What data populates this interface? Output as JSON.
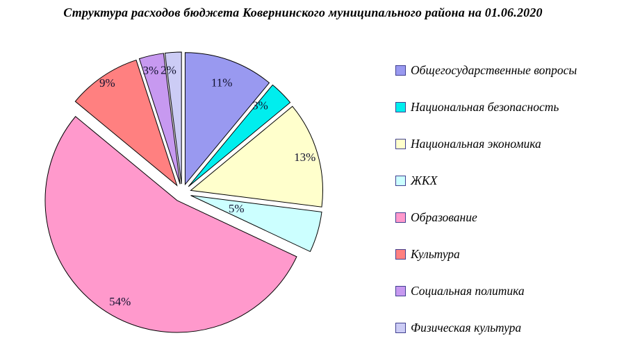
{
  "title": "Структура расходов бюджета Ковернинского муниципального района на 01.06.2020",
  "chart_data": {
    "type": "pie",
    "title": "Структура расходов бюджета Ковернинского муниципального района на 01.06.2020",
    "legend_position": "right",
    "start_angle_deg": 0,
    "direction": "clockwise",
    "exploded": true,
    "label_format": "percent",
    "outline_color": "#000000",
    "slices": [
      {
        "label": "Общегосударственные вопросы",
        "value": 11,
        "color": "#9999F0",
        "label_r_frac": 0.82,
        "label_angle_deg": null
      },
      {
        "label": "Национальная безопасность",
        "value": 3,
        "color": "#00EEEE",
        "label_r_frac": 0.82,
        "label_angle_deg": 41.5
      },
      {
        "label": "Национальная экономика",
        "value": 13,
        "color": "#FFFFCC",
        "label_r_frac": 0.9,
        "label_angle_deg": null
      },
      {
        "label": "ЖКХ",
        "value": 5,
        "color": "#CCFFFF",
        "label_r_frac": 0.36,
        "label_angle_deg": null
      },
      {
        "label": "Образование",
        "value": 54,
        "color": "#FF99CC",
        "label_r_frac": 0.88,
        "label_angle_deg": 209.5
      },
      {
        "label": "Культура",
        "value": 9,
        "color": "#FF8080",
        "label_r_frac": 0.94,
        "label_angle_deg": null
      },
      {
        "label": "Социальная политика",
        "value": 3,
        "color": "#C799F0",
        "label_r_frac": 0.89,
        "label_angle_deg": 345.5
      },
      {
        "label": "Физическая культура",
        "value": 2,
        "color": "#CCCCF5",
        "label_r_frac": 0.87,
        "label_angle_deg": 353.5
      }
    ]
  }
}
